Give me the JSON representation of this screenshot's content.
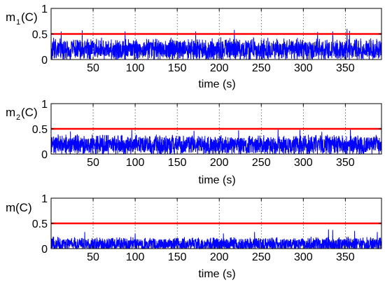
{
  "chart_data": [
    {
      "type": "line",
      "ylabel": "m",
      "ylabel_sub": "1",
      "ylabel_suffix": "(C)",
      "xlabel": "time (s)",
      "xlim": [
        0,
        393
      ],
      "ylim": [
        0,
        1
      ],
      "xticks": [
        50,
        100,
        150,
        200,
        250,
        300,
        350
      ],
      "yticks": [
        0,
        0.5,
        1
      ],
      "ytick_labels": [
        "0",
        "0.5",
        "1"
      ],
      "grid_x": "dotted",
      "threshold": {
        "y": 0.5,
        "color": "#ff0000"
      },
      "series": [
        {
          "color": "#0000ff",
          "baseline": 0.22,
          "spread": 0.22,
          "peaks": [
            [
              12,
              0.55
            ],
            [
              37,
              0.57
            ],
            [
              88,
              0.55
            ],
            [
              172,
              0.55
            ],
            [
              218,
              0.58
            ],
            [
              317,
              0.54
            ],
            [
              335,
              0.55
            ],
            [
              352,
              0.6
            ],
            [
              355,
              0.56
            ]
          ]
        }
      ]
    },
    {
      "type": "line",
      "ylabel": "m",
      "ylabel_sub": "2",
      "ylabel_suffix": "(C)",
      "xlabel": "time (s)",
      "xlim": [
        0,
        393
      ],
      "ylim": [
        0,
        1
      ],
      "xticks": [
        50,
        100,
        150,
        200,
        250,
        300,
        350
      ],
      "yticks": [
        0,
        0.5,
        1
      ],
      "ytick_labels": [
        "0",
        "0.5",
        "1"
      ],
      "grid_x": "dotted",
      "threshold": {
        "y": 0.5,
        "color": "#ff0000"
      },
      "series": [
        {
          "color": "#0000ff",
          "baseline": 0.2,
          "spread": 0.2,
          "peaks": [
            [
              23,
              0.45
            ],
            [
              96,
              0.48
            ],
            [
              170,
              0.46
            ],
            [
              223,
              0.47
            ],
            [
              270,
              0.49
            ],
            [
              296,
              0.48
            ],
            [
              322,
              0.44
            ],
            [
              356,
              0.5
            ]
          ]
        }
      ]
    },
    {
      "type": "line",
      "ylabel": "m",
      "ylabel_sub": "",
      "ylabel_suffix": "(C)",
      "xlabel": "time (s)",
      "xlim": [
        0,
        393
      ],
      "ylim": [
        0,
        1
      ],
      "xticks": [
        50,
        100,
        150,
        200,
        250,
        300,
        350
      ],
      "yticks": [
        0,
        0.5,
        1
      ],
      "ytick_labels": [
        "0",
        "0.5",
        "1"
      ],
      "grid_x": "dotted",
      "threshold": {
        "y": 0.5,
        "color": "#ff0000"
      },
      "series": [
        {
          "color": "#0000ff",
          "baseline": 0.1,
          "spread": 0.14,
          "peaks": [
            [
              40,
              0.33
            ],
            [
              100,
              0.3
            ],
            [
              205,
              0.3
            ],
            [
              242,
              0.33
            ],
            [
              330,
              0.38
            ],
            [
              335,
              0.37
            ],
            [
              361,
              0.35
            ],
            [
              388,
              0.33
            ]
          ]
        }
      ]
    }
  ]
}
